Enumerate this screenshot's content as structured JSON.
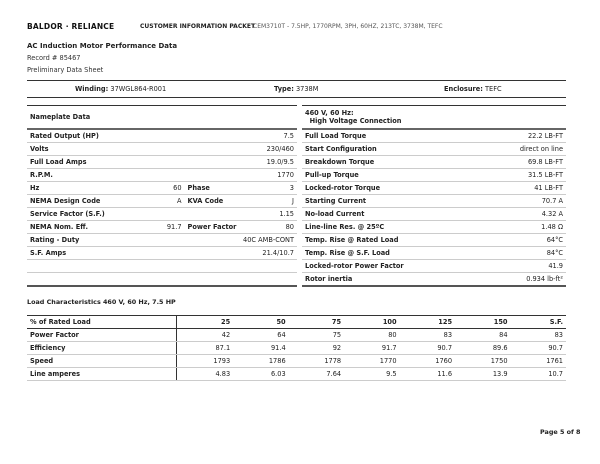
{
  "header": {
    "logo": "BALDOR · RELIANCE",
    "packet": "CUSTOMER INFORMATION PACKET",
    "product": "CEM3710T - 7.5HP, 1770RPM, 3PH, 60HZ, 213TC, 3738M, TEFC"
  },
  "doc": {
    "title": "AC Induction Motor Performance Data",
    "record": "Record # 85467",
    "status": "Preliminary Data Sheet"
  },
  "info": {
    "winding_label": "Winding:",
    "winding": "37WGL864-R001",
    "type_label": "Type:",
    "type": "3738M",
    "enclosure_label": "Enclosure:",
    "enclosure": "TEFC"
  },
  "nameplate": {
    "title": "Nameplate Data",
    "rows": [
      {
        "label": "Rated Output (HP)",
        "value": "7.5"
      },
      {
        "label": "Volts",
        "value": "230/460"
      },
      {
        "label": "Full Load Amps",
        "value": "19.0/9.5"
      },
      {
        "label": "R.P.M.",
        "value": "1770"
      },
      {
        "label": "Hz",
        "value": "60",
        "label2": "Phase",
        "value2": "3"
      },
      {
        "label": "NEMA Design Code",
        "value": "A",
        "label2": "KVA Code",
        "value2": "J"
      },
      {
        "label": "Service Factor (S.F.)",
        "value": "1.15"
      },
      {
        "label": "NEMA Nom. Eff.",
        "value": "91.7",
        "label2": "Power Factor",
        "value2": "80"
      },
      {
        "label": "Rating - Duty",
        "value": "40C AMB-CONT"
      },
      {
        "label": "S.F. Amps",
        "value": "21.4/10.7"
      }
    ]
  },
  "connection": {
    "title1": "460 V, 60 Hz:",
    "title2": "High Voltage Connection",
    "rows": [
      {
        "label": "Full Load Torque",
        "value": "22.2 LB-FT"
      },
      {
        "label": "Start Configuration",
        "value": "direct on line"
      },
      {
        "label": "Breakdown Torque",
        "value": "69.8 LB-FT"
      },
      {
        "label": "Pull-up Torque",
        "value": "31.5 LB-FT"
      },
      {
        "label": "Locked-rotor Torque",
        "value": "41 LB-FT"
      },
      {
        "label": "Starting Current",
        "value": "70.7 A"
      },
      {
        "label": "No-load Current",
        "value": "4.32 A"
      },
      {
        "label": "Line-line Res. @ 25ºC",
        "value": "1.48 Ω"
      },
      {
        "label": "Temp. Rise @ Rated Load",
        "value": "64°C"
      },
      {
        "label": "Temp. Rise @ S.F. Load",
        "value": "84°C"
      },
      {
        "label": "Locked-rotor Power Factor",
        "value": "41.9"
      },
      {
        "label": "Rotor inertia",
        "value": "0.934 lb-ft²"
      }
    ]
  },
  "load": {
    "title": "Load Characteristics 460 V, 60 Hz, 7.5 HP",
    "header": [
      "% of Rated Load",
      "25",
      "50",
      "75",
      "100",
      "125",
      "150",
      "S.F."
    ],
    "rows": [
      [
        "Power Factor",
        "42",
        "64",
        "75",
        "80",
        "83",
        "84",
        "83"
      ],
      [
        "Efficiency",
        "87.1",
        "91.4",
        "92",
        "91.7",
        "90.7",
        "89.6",
        "90.7"
      ],
      [
        "Speed",
        "1793",
        "1786",
        "1778",
        "1770",
        "1760",
        "1750",
        "1761"
      ],
      [
        "Line amperes",
        "4.83",
        "6.03",
        "7.64",
        "9.5",
        "11.6",
        "13.9",
        "10.7"
      ]
    ]
  },
  "footer": {
    "page": "Page 5 of 8"
  }
}
